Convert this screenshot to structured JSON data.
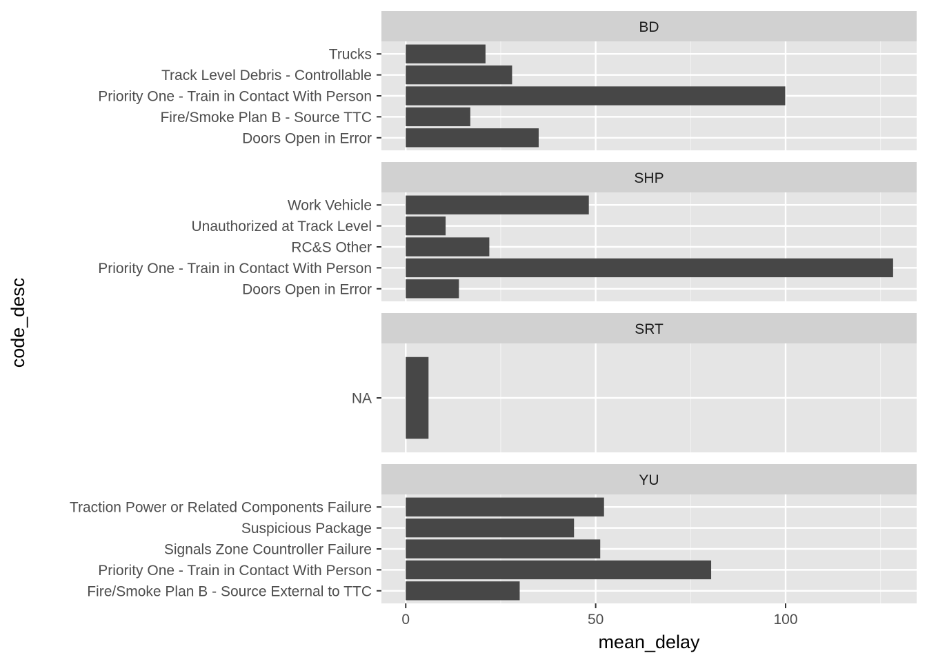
{
  "chart_data": {
    "type": "bar",
    "orientation": "horizontal",
    "xlabel": "mean_delay",
    "ylabel": "code_desc",
    "xlim": [
      -6.4,
      134.5
    ],
    "x_ticks": [
      0,
      50,
      100
    ],
    "x_minor_ticks": [
      25,
      75,
      125
    ],
    "grid": true,
    "bar_color": "#474747",
    "panel_bg": "#e5e5e5",
    "strip_bg": "#d1d1d1",
    "facets": [
      {
        "name": "BD",
        "categories": [
          "Trucks",
          "Track Level Debris - Controllable",
          "Priority One - Train in Contact With Person",
          "Fire/Smoke Plan B - Source TTC",
          "Doors Open in Error"
        ],
        "values": [
          21,
          28,
          99.9,
          17,
          35
        ]
      },
      {
        "name": "SHP",
        "categories": [
          "Work Vehicle",
          "Unauthorized at Track Level",
          "RC&S Other",
          "Priority One - Train in Contact With Person",
          "Doors Open in Error"
        ],
        "values": [
          48.2,
          10.5,
          22,
          128.3,
          14
        ]
      },
      {
        "name": "SRT",
        "categories": [
          "NA"
        ],
        "values": [
          6
        ]
      },
      {
        "name": "YU",
        "categories": [
          "Traction Power or Related Components Failure",
          "Suspicious Package",
          "Signals Zone Countroller Failure",
          "Priority One - Train in Contact With Person",
          "Fire/Smoke Plan B - Source External to TTC"
        ],
        "values": [
          52.2,
          44.3,
          51.2,
          80.4,
          30
        ]
      }
    ]
  }
}
